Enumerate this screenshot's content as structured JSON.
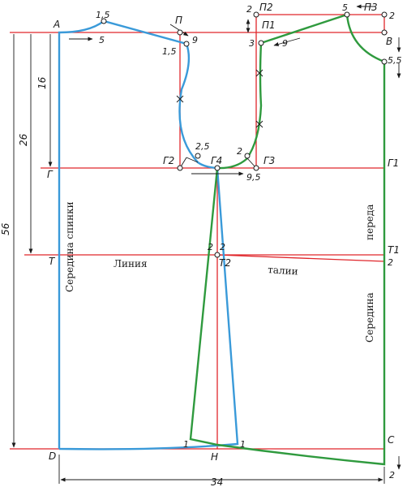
{
  "points": {
    "A": "А",
    "P": "П",
    "P1": "П1",
    "P2": "П2",
    "P3": "П3",
    "V": "В",
    "G": "Г",
    "G1": "Г1",
    "G2": "Г2",
    "G3": "Г3",
    "G4": "Г4",
    "T": "Т",
    "T1": "Т1",
    "T2": "Т2",
    "D": "D",
    "H": "Н",
    "C": "С"
  },
  "measures": {
    "neck_back_rise": "1,5",
    "neck_back_width": "5",
    "shoulder_drop": "1,5",
    "shoulder_extend": "9",
    "armhole_back": "2,5",
    "armhole_front": "2",
    "armhole_width": "9,5",
    "front_shoulder_raise": "2",
    "front_shoulder_drop": "3",
    "front_shoulder_len": "9",
    "front_neck_width": "5",
    "front_neck_top": "2",
    "front_neck_depth": "5,5",
    "side_waist_l": "2",
    "side_waist_r": "2",
    "front_waist": "2",
    "hem_l": "1",
    "hem_r": "1",
    "hem_front": "2",
    "dim_16": "16",
    "dim_26": "26",
    "dim_56": "56",
    "dim_34": "34"
  },
  "labels": {
    "back_center": "Середина спинки",
    "front_top": "переда",
    "front_bottom": "Середина",
    "line_word": "Линия",
    "waist_word": "талии"
  }
}
